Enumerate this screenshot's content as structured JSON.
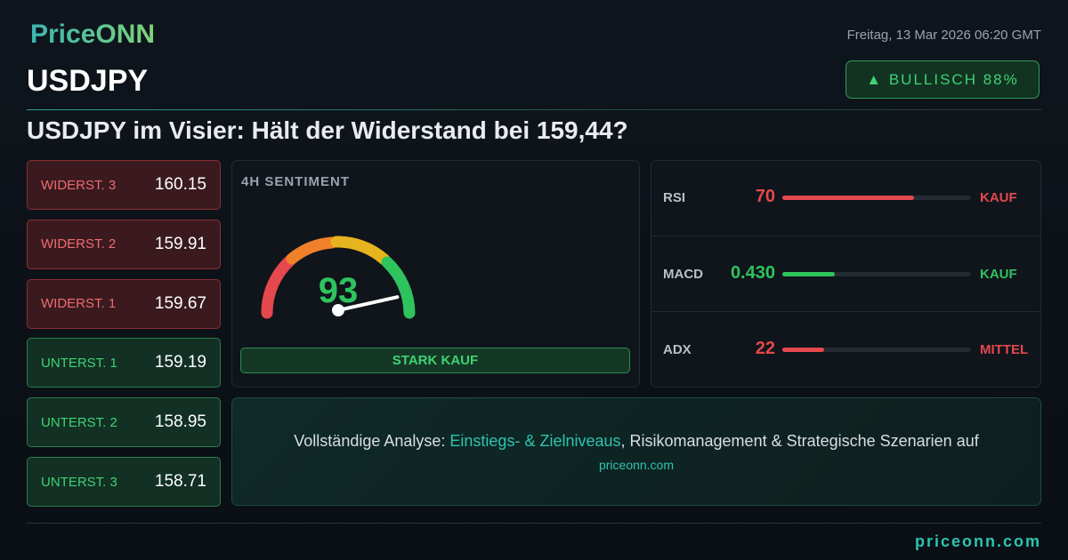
{
  "header": {
    "logo": "PriceONN",
    "date": "Freitag, 13 Mar 2026 06:20 GMT",
    "symbol": "USDJPY",
    "badge": "▲ BULLISCH 88%"
  },
  "headline": "USDJPY im Visier: Hält der Widerstand bei 159,44?",
  "levels": [
    {
      "label": "WIDERST. 3",
      "price": "160.15",
      "kind": "resistance"
    },
    {
      "label": "WIDERST. 2",
      "price": "159.91",
      "kind": "resistance"
    },
    {
      "label": "WIDERST. 1",
      "price": "159.67",
      "kind": "resistance"
    },
    {
      "label": "UNTERST. 1",
      "price": "159.19",
      "kind": "support"
    },
    {
      "label": "UNTERST. 2",
      "price": "158.95",
      "kind": "support"
    },
    {
      "label": "UNTERST. 3",
      "price": "158.71",
      "kind": "support"
    }
  ],
  "sentiment": {
    "title": "4H SENTIMENT",
    "value": 93,
    "signal": "STARK KAUF"
  },
  "indicators": [
    {
      "name": "RSI",
      "value": 70,
      "signal": "KAUF",
      "color": "#e5484d"
    },
    {
      "name": "MACD",
      "value": "0.430",
      "signal": "KAUF",
      "color": "#2fc35e"
    },
    {
      "name": "ADX",
      "value": 22,
      "signal": "MITTEL",
      "color": "#e5484d"
    }
  ],
  "cta": {
    "parts": [
      "Vollständige Analyse: ",
      "Einstiegs- & Zielniveaus",
      ", Risikomanagement & Strategische Szenarien auf"
    ],
    "link": "priceonn.com"
  },
  "footer": {
    "url": "priceonn.com"
  }
}
